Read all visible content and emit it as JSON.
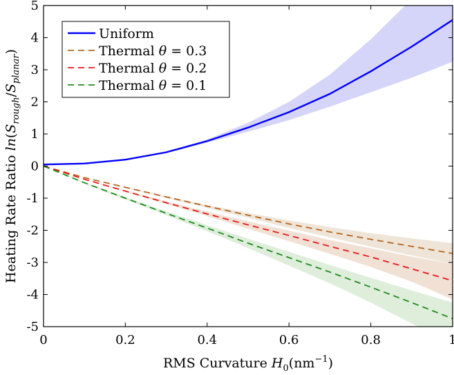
{
  "chart_data": {
    "type": "line",
    "xlabel": "RMS Curvature H0(nm^-1)",
    "xlabel_parts": {
      "pre": "RMS Curvature ",
      "var": "H",
      "sub": "0",
      "post1": "(nm",
      "sup": "−1",
      "post2": ")"
    },
    "ylabel": "Heating Rate Ratio ln(S_rough/S_planar)",
    "ylabel_parts": {
      "pre": "Heating Rate Ratio ",
      "ln": "ln",
      "open": "(",
      "s1": "S",
      "sub1": "rough",
      "slash": "/",
      "s2": "S",
      "sub2": "planar",
      "close": ")"
    },
    "xlim": [
      0,
      1
    ],
    "ylim": [
      -5,
      5
    ],
    "xticks": [
      0,
      0.2,
      0.4,
      0.6,
      0.8,
      1
    ],
    "xtick_labels": [
      "0",
      "0.2",
      "0.4",
      "0.6",
      "0.8",
      "1"
    ],
    "yticks": [
      -5,
      -4,
      -3,
      -2,
      -1,
      0,
      1,
      2,
      3,
      4,
      5
    ],
    "ytick_labels": [
      "-5",
      "-4",
      "-3",
      "-2",
      "-1",
      "0",
      "1",
      "2",
      "3",
      "4",
      "5"
    ],
    "grid": false,
    "legend_position": "top-left",
    "x": [
      0,
      0.1,
      0.2,
      0.3,
      0.4,
      0.5,
      0.6,
      0.7,
      0.8,
      0.9,
      1.0
    ],
    "series": [
      {
        "name": "Uniform",
        "legend_label": {
          "pre": "Uniform",
          "theta": "",
          "post": ""
        },
        "color": "#0000ff",
        "dash": false,
        "values": [
          0.05,
          0.08,
          0.2,
          0.43,
          0.78,
          1.2,
          1.68,
          2.25,
          2.95,
          3.72,
          4.55
        ],
        "upper": [
          0.05,
          0.08,
          0.21,
          0.46,
          0.83,
          1.35,
          2.0,
          2.85,
          3.95,
          5.2,
          6.5
        ],
        "lower": [
          0.05,
          0.08,
          0.19,
          0.41,
          0.73,
          1.07,
          1.43,
          1.85,
          2.3,
          2.75,
          3.25
        ],
        "band_color": "#c7c7f7"
      },
      {
        "name": "Thermal θ = 0.3",
        "legend_label": {
          "pre": "Thermal ",
          "theta": "θ",
          "post": " = 0.3"
        },
        "color": "#b5651d",
        "dash": true,
        "values": [
          0.0,
          -0.36,
          -0.66,
          -0.96,
          -1.25,
          -1.53,
          -1.8,
          -2.05,
          -2.28,
          -2.5,
          -2.72
        ],
        "upper": [
          0.0,
          -0.36,
          -0.65,
          -0.94,
          -1.21,
          -1.46,
          -1.69,
          -1.9,
          -2.09,
          -2.25,
          -2.4
        ],
        "lower": [
          0.0,
          -0.37,
          -0.68,
          -0.99,
          -1.3,
          -1.61,
          -1.93,
          -2.22,
          -2.51,
          -2.78,
          -3.05
        ],
        "band_color": "#e8dccb"
      },
      {
        "name": "Thermal θ = 0.2",
        "legend_label": {
          "pre": "Thermal ",
          "theta": "θ",
          "post": " = 0.2"
        },
        "color": "#e8191c",
        "dash": true,
        "values": [
          0.0,
          -0.41,
          -0.78,
          -1.14,
          -1.49,
          -1.83,
          -2.16,
          -2.5,
          -2.83,
          -3.2,
          -3.57
        ],
        "upper": [
          0.0,
          -0.4,
          -0.76,
          -1.1,
          -1.42,
          -1.72,
          -2.01,
          -2.3,
          -2.56,
          -2.82,
          -3.05
        ],
        "lower": [
          0.0,
          -0.42,
          -0.8,
          -1.18,
          -1.56,
          -1.95,
          -2.34,
          -2.73,
          -3.14,
          -3.6,
          -4.15
        ],
        "band_color": "#ecd5c6"
      },
      {
        "name": "Thermal θ = 0.1",
        "legend_label": {
          "pre": "Thermal ",
          "theta": "θ",
          "post": " = 0.1"
        },
        "color": "#208a20",
        "dash": true,
        "values": [
          0.0,
          -0.52,
          -1.0,
          -1.47,
          -1.93,
          -2.4,
          -2.85,
          -3.3,
          -3.77,
          -4.25,
          -4.75
        ],
        "upper": [
          0.0,
          -0.5,
          -0.96,
          -1.41,
          -1.84,
          -2.26,
          -2.67,
          -3.08,
          -3.48,
          -3.87,
          -4.25
        ],
        "lower": [
          0.0,
          -0.54,
          -1.04,
          -1.53,
          -2.03,
          -2.55,
          -3.1,
          -3.65,
          -4.25,
          -4.9,
          -5.5
        ],
        "band_color": "#d3e8cf"
      }
    ]
  }
}
